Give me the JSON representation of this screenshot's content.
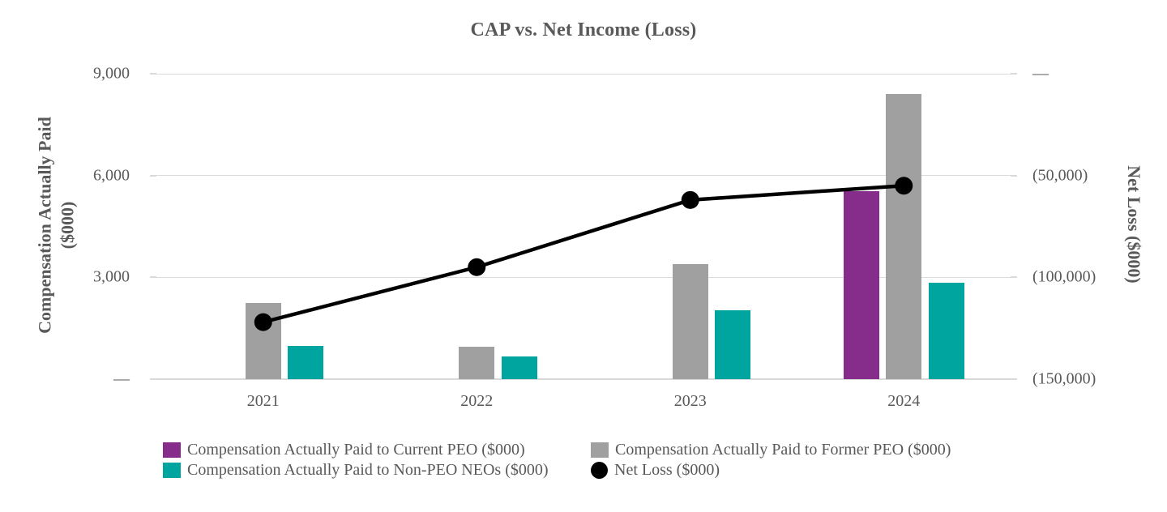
{
  "chart": {
    "title": "CAP vs. Net Income (Loss)",
    "left_axis_title_line1": "Compensation Actually Paid",
    "left_axis_title_line2": "($000)",
    "right_axis_title": "Net Loss ($000)"
  },
  "chart_data": {
    "type": "combo",
    "title": "CAP vs. Net Income (Loss)",
    "categories": [
      "2021",
      "2022",
      "2023",
      "2024"
    ],
    "series": [
      {
        "name": "Compensation Actually Paid to Current PEO ($000)",
        "type": "bar",
        "color": "#862D8C",
        "values": [
          null,
          null,
          null,
          5530
        ]
      },
      {
        "name": "Compensation Actually Paid to Former PEO ($000)",
        "type": "bar",
        "color": "#A0A0A0",
        "values": [
          2250,
          960,
          3400,
          8400
        ]
      },
      {
        "name": "Compensation Actually Paid to Non-PEO NEOs ($000)",
        "type": "bar",
        "color": "#00A5A0",
        "values": [
          970,
          680,
          2030,
          2840
        ]
      },
      {
        "name": "Net Loss ($000)",
        "type": "line",
        "color": "#000000",
        "values": [
          -122000,
          -95000,
          -62000,
          -55000
        ]
      }
    ],
    "left_axis": {
      "title": "Compensation Actually Paid ($000)",
      "min": 0,
      "max": 9000,
      "tick_values": [
        9000,
        6000,
        3000,
        0
      ],
      "tick_labels": [
        "9,000",
        "6,000",
        "3,000",
        "—"
      ]
    },
    "right_axis": {
      "title": "Net Loss ($000)",
      "min": -150000,
      "max": 0,
      "tick_values": [
        0,
        -50000,
        -100000,
        -150000
      ],
      "tick_labels": [
        "—",
        "(50,000)",
        "(100,000)",
        "(150,000)"
      ]
    },
    "grid": true,
    "legend_position": "bottom"
  },
  "legend": {
    "items": [
      {
        "label": "Compensation Actually Paid to Current PEO ($000)",
        "color": "#862D8C",
        "shape": "square"
      },
      {
        "label": "Compensation Actually Paid to Non-PEO NEOs ($000)",
        "color": "#00A5A0",
        "shape": "square"
      },
      {
        "label": "Compensation Actually Paid to Former PEO ($000)",
        "color": "#A0A0A0",
        "shape": "square"
      },
      {
        "label": "Net Loss ($000)",
        "color": "#000000",
        "shape": "circle"
      }
    ]
  },
  "colors": {
    "text": "#595959",
    "gridline": "#DCDCDC",
    "current_peo": "#862D8C",
    "former_peo": "#A0A0A0",
    "non_peo_neos": "#00A5A0",
    "net_loss": "#000000"
  }
}
